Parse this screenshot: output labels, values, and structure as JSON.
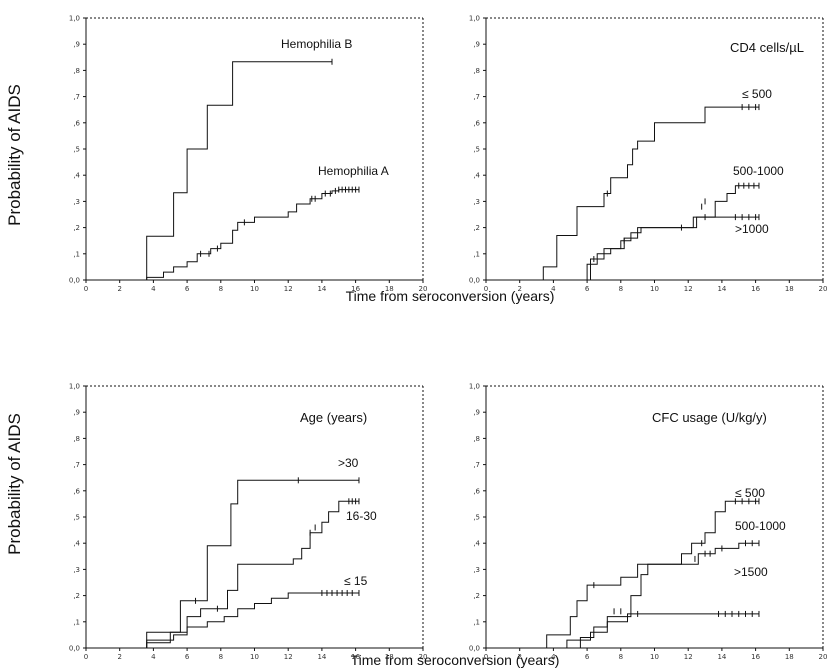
{
  "figure": {
    "ylabel_top": "Probability of AIDS",
    "ylabel_bottom": "Probability of AIDS",
    "xlabel_top": "Time from seroconversion (years)",
    "xlabel_bottom": "Time from seroconversion (years)"
  },
  "chart_data": [
    {
      "type": "line",
      "title": "",
      "xlim": [
        0,
        20
      ],
      "ylim": [
        0,
        1
      ],
      "x_ticks": [
        "0",
        "2",
        "4",
        "6",
        "8",
        "10",
        "12",
        "14",
        "16",
        "18",
        "20"
      ],
      "y_ticks": [
        "0,0",
        ",1",
        ",2",
        ",3",
        ",4",
        ",5",
        ",6",
        ",7",
        ",8",
        ",9",
        "1,0"
      ],
      "series": [
        {
          "name": "Hemophilia B",
          "steps": [
            [
              0,
              0
            ],
            [
              3.6,
              0.167
            ],
            [
              5.2,
              0.333
            ],
            [
              6.0,
              0.5
            ],
            [
              7.2,
              0.667
            ],
            [
              8.7,
              0.833
            ],
            [
              14.6,
              0.833
            ]
          ],
          "censor": [
            [
              14.6,
              0.833
            ]
          ]
        },
        {
          "name": "Hemophilia A",
          "steps": [
            [
              0,
              0
            ],
            [
              3.6,
              0.01
            ],
            [
              4.6,
              0.03
            ],
            [
              5.2,
              0.05
            ],
            [
              6.0,
              0.07
            ],
            [
              6.6,
              0.1
            ],
            [
              7.4,
              0.12
            ],
            [
              8.0,
              0.14
            ],
            [
              8.7,
              0.19
            ],
            [
              9.0,
              0.22
            ],
            [
              10.0,
              0.24
            ],
            [
              12.0,
              0.26
            ],
            [
              12.5,
              0.29
            ],
            [
              13.3,
              0.31
            ],
            [
              14.0,
              0.33
            ],
            [
              14.6,
              0.34
            ],
            [
              15.0,
              0.345
            ],
            [
              16.2,
              0.345
            ]
          ],
          "censor": [
            [
              6.8,
              0.1
            ],
            [
              7.3,
              0.1
            ],
            [
              7.8,
              0.12
            ],
            [
              9.4,
              0.22
            ],
            [
              13.4,
              0.31
            ],
            [
              13.6,
              0.31
            ],
            [
              14.2,
              0.33
            ],
            [
              14.5,
              0.33
            ],
            [
              14.8,
              0.34
            ],
            [
              15.0,
              0.345
            ],
            [
              15.2,
              0.345
            ],
            [
              15.4,
              0.345
            ],
            [
              15.6,
              0.345
            ],
            [
              15.8,
              0.345
            ],
            [
              16.0,
              0.345
            ],
            [
              16.2,
              0.345
            ]
          ]
        }
      ]
    },
    {
      "type": "line",
      "title": "CD4 cells/µL",
      "xlim": [
        0,
        20
      ],
      "ylim": [
        0,
        1
      ],
      "x_ticks": [
        "0",
        "2",
        "4",
        "6",
        "8",
        "10",
        "12",
        "14",
        "16",
        "18",
        "20"
      ],
      "y_ticks": [
        "0,0",
        ",1",
        ",2",
        ",3",
        ",4",
        ",5",
        ",6",
        ",7",
        ",8",
        ",9",
        "1,0"
      ],
      "series": [
        {
          "name": "≤ 500",
          "steps": [
            [
              0,
              0
            ],
            [
              3.4,
              0.05
            ],
            [
              4.2,
              0.17
            ],
            [
              5.4,
              0.28
            ],
            [
              7.0,
              0.33
            ],
            [
              7.4,
              0.39
            ],
            [
              8.4,
              0.44
            ],
            [
              8.7,
              0.5
            ],
            [
              9.0,
              0.53
            ],
            [
              10.0,
              0.6
            ],
            [
              13.0,
              0.66
            ],
            [
              16.2,
              0.66
            ]
          ],
          "censor": [
            [
              7.2,
              0.33
            ],
            [
              15.2,
              0.66
            ],
            [
              15.6,
              0.66
            ],
            [
              16.0,
              0.66
            ],
            [
              16.2,
              0.66
            ]
          ]
        },
        {
          "name": "500-1000",
          "steps": [
            [
              0,
              0
            ],
            [
              6.0,
              0.06
            ],
            [
              6.6,
              0.1
            ],
            [
              7.4,
              0.12
            ],
            [
              8.0,
              0.15
            ],
            [
              8.6,
              0.18
            ],
            [
              9.2,
              0.2
            ],
            [
              12.3,
              0.24
            ],
            [
              13.6,
              0.3
            ],
            [
              14.3,
              0.33
            ],
            [
              14.8,
              0.36
            ],
            [
              16.2,
              0.36
            ]
          ],
          "censor": [
            [
              6.4,
              0.08
            ],
            [
              8.2,
              0.15
            ],
            [
              12.8,
              0.28
            ],
            [
              13.0,
              0.3
            ],
            [
              15.0,
              0.36
            ],
            [
              15.3,
              0.36
            ],
            [
              15.6,
              0.36
            ],
            [
              15.9,
              0.36
            ],
            [
              16.2,
              0.36
            ]
          ]
        },
        {
          "name": ">1000",
          "steps": [
            [
              0,
              0
            ],
            [
              6.2,
              0.08
            ],
            [
              7.0,
              0.12
            ],
            [
              8.2,
              0.16
            ],
            [
              9.0,
              0.2
            ],
            [
              11.0,
              0.2
            ],
            [
              12.5,
              0.24
            ],
            [
              16.2,
              0.24
            ]
          ],
          "censor": [
            [
              11.6,
              0.2
            ],
            [
              13.0,
              0.24
            ],
            [
              14.8,
              0.24
            ],
            [
              15.2,
              0.24
            ],
            [
              15.6,
              0.24
            ],
            [
              16.0,
              0.24
            ],
            [
              16.2,
              0.24
            ]
          ]
        }
      ]
    },
    {
      "type": "line",
      "title": "Age (years)",
      "xlim": [
        0,
        20
      ],
      "ylim": [
        0,
        1
      ],
      "x_ticks": [
        "0",
        "2",
        "4",
        "6",
        "8",
        "10",
        "12",
        "14",
        "16",
        "18",
        "20"
      ],
      "y_ticks": [
        "0,0",
        ",1",
        ",2",
        ",3",
        ",4",
        ",5",
        ",6",
        ",7",
        ",8",
        ",9",
        "1,0"
      ],
      "series": [
        {
          "name": ">30",
          "steps": [
            [
              0,
              0
            ],
            [
              3.6,
              0.06
            ],
            [
              5.6,
              0.18
            ],
            [
              7.2,
              0.39
            ],
            [
              8.6,
              0.55
            ],
            [
              9.0,
              0.64
            ],
            [
              16.2,
              0.64
            ]
          ],
          "censor": [
            [
              6.5,
              0.18
            ],
            [
              12.6,
              0.64
            ],
            [
              16.2,
              0.64
            ]
          ]
        },
        {
          "name": "16-30",
          "steps": [
            [
              0,
              0
            ],
            [
              3.6,
              0.02
            ],
            [
              5.0,
              0.06
            ],
            [
              6.0,
              0.12
            ],
            [
              6.8,
              0.15
            ],
            [
              8.4,
              0.22
            ],
            [
              9.0,
              0.32
            ],
            [
              12.3,
              0.34
            ],
            [
              12.8,
              0.38
            ],
            [
              13.3,
              0.44
            ],
            [
              14.0,
              0.48
            ],
            [
              14.4,
              0.52
            ],
            [
              15.0,
              0.56
            ],
            [
              16.2,
              0.56
            ]
          ],
          "censor": [
            [
              7.8,
              0.15
            ],
            [
              13.3,
              0.44
            ],
            [
              13.6,
              0.46
            ],
            [
              15.6,
              0.56
            ],
            [
              15.8,
              0.56
            ],
            [
              16.0,
              0.56
            ],
            [
              16.2,
              0.56
            ]
          ]
        },
        {
          "name": "≤ 15",
          "steps": [
            [
              0,
              0
            ],
            [
              3.6,
              0.03
            ],
            [
              5.2,
              0.05
            ],
            [
              6.0,
              0.08
            ],
            [
              7.2,
              0.1
            ],
            [
              8.2,
              0.12
            ],
            [
              9.0,
              0.15
            ],
            [
              10.0,
              0.17
            ],
            [
              11.0,
              0.19
            ],
            [
              12.0,
              0.21
            ],
            [
              16.2,
              0.21
            ]
          ],
          "censor": [
            [
              14.0,
              0.21
            ],
            [
              14.3,
              0.21
            ],
            [
              14.6,
              0.21
            ],
            [
              14.9,
              0.21
            ],
            [
              15.2,
              0.21
            ],
            [
              15.5,
              0.21
            ],
            [
              15.8,
              0.21
            ],
            [
              16.2,
              0.21
            ]
          ]
        }
      ]
    },
    {
      "type": "line",
      "title": "CFC usage (U/kg/y)",
      "xlim": [
        0,
        20
      ],
      "ylim": [
        0,
        1
      ],
      "x_ticks": [
        "0",
        "2",
        "4",
        "6",
        "8",
        "10",
        "12",
        "14",
        "16",
        "18",
        "20"
      ],
      "y_ticks": [
        "0,0",
        ",1",
        ",2",
        ",3",
        ",4",
        ",5",
        ",6",
        ",7",
        ",8",
        ",9",
        "1,0"
      ],
      "series": [
        {
          "name": "≤ 500",
          "steps": [
            [
              0,
              0
            ],
            [
              3.6,
              0.05
            ],
            [
              5.0,
              0.12
            ],
            [
              5.4,
              0.18
            ],
            [
              6.0,
              0.24
            ],
            [
              8.0,
              0.27
            ],
            [
              9.0,
              0.32
            ],
            [
              11.6,
              0.36
            ],
            [
              12.2,
              0.4
            ],
            [
              13.0,
              0.44
            ],
            [
              13.6,
              0.52
            ],
            [
              14.2,
              0.56
            ],
            [
              16.2,
              0.56
            ]
          ],
          "censor": [
            [
              6.4,
              0.24
            ],
            [
              12.8,
              0.4
            ],
            [
              14.8,
              0.56
            ],
            [
              15.2,
              0.56
            ],
            [
              15.6,
              0.56
            ],
            [
              16.0,
              0.56
            ],
            [
              16.2,
              0.56
            ]
          ]
        },
        {
          "name": "500-1000",
          "steps": [
            [
              0,
              0
            ],
            [
              5.6,
              0.04
            ],
            [
              6.4,
              0.08
            ],
            [
              7.2,
              0.12
            ],
            [
              8.6,
              0.2
            ],
            [
              9.2,
              0.28
            ],
            [
              9.6,
              0.32
            ],
            [
              12.6,
              0.36
            ],
            [
              13.6,
              0.38
            ],
            [
              15.0,
              0.4
            ],
            [
              16.2,
              0.4
            ]
          ],
          "censor": [
            [
              7.6,
              0.14
            ],
            [
              8.0,
              0.14
            ],
            [
              12.4,
              0.34
            ],
            [
              13.0,
              0.36
            ],
            [
              13.3,
              0.36
            ],
            [
              14.0,
              0.38
            ],
            [
              15.4,
              0.4
            ],
            [
              15.8,
              0.4
            ],
            [
              16.2,
              0.4
            ]
          ]
        },
        {
          "name": ">1500",
          "steps": [
            [
              0,
              0
            ],
            [
              4.8,
              0.03
            ],
            [
              6.2,
              0.06
            ],
            [
              7.2,
              0.1
            ],
            [
              8.4,
              0.13
            ],
            [
              16.2,
              0.13
            ]
          ],
          "censor": [
            [
              9.0,
              0.13
            ],
            [
              13.8,
              0.13
            ],
            [
              14.2,
              0.13
            ],
            [
              14.6,
              0.13
            ],
            [
              15.0,
              0.13
            ],
            [
              15.4,
              0.13
            ],
            [
              15.8,
              0.13
            ],
            [
              16.2,
              0.13
            ]
          ]
        }
      ]
    }
  ]
}
